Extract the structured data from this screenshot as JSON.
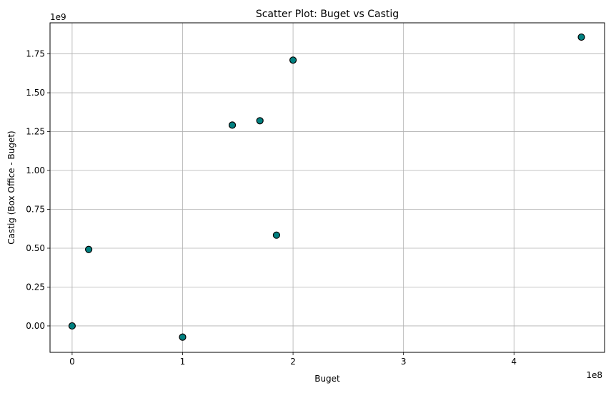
{
  "chart_data": {
    "type": "scatter",
    "title": "Scatter Plot: Buget vs Castig",
    "xlabel": "Buget",
    "ylabel": "Castig (Box Office - Buget)",
    "x_multiplier_label": "1e8",
    "y_multiplier_label": "1e9",
    "x_scale": 100000000,
    "y_scale": 1000000000,
    "xlim": [
      -20000000,
      482000000
    ],
    "ylim": [
      -170000000,
      1950000000
    ],
    "x_ticks": [
      0,
      100000000,
      200000000,
      300000000,
      400000000
    ],
    "x_tick_labels": [
      "0",
      "1",
      "2",
      "3",
      "4"
    ],
    "y_ticks": [
      0,
      250000000,
      500000000,
      750000000,
      1000000000,
      1250000000,
      1500000000,
      1750000000
    ],
    "y_tick_labels": [
      "0.00",
      "0.25",
      "0.50",
      "0.75",
      "1.00",
      "1.25",
      "1.50",
      "1.75"
    ],
    "grid": true,
    "marker_fill": "#008080",
    "marker_edge": "#000000",
    "points": [
      {
        "x": 0,
        "y": 0
      },
      {
        "x": 15000000,
        "y": 492000000
      },
      {
        "x": 100000000,
        "y": -72000000
      },
      {
        "x": 145000000,
        "y": 1292000000
      },
      {
        "x": 170000000,
        "y": 1320000000
      },
      {
        "x": 185000000,
        "y": 584000000
      },
      {
        "x": 200000000,
        "y": 1710000000
      },
      {
        "x": 461000000,
        "y": 1858000000
      }
    ]
  }
}
